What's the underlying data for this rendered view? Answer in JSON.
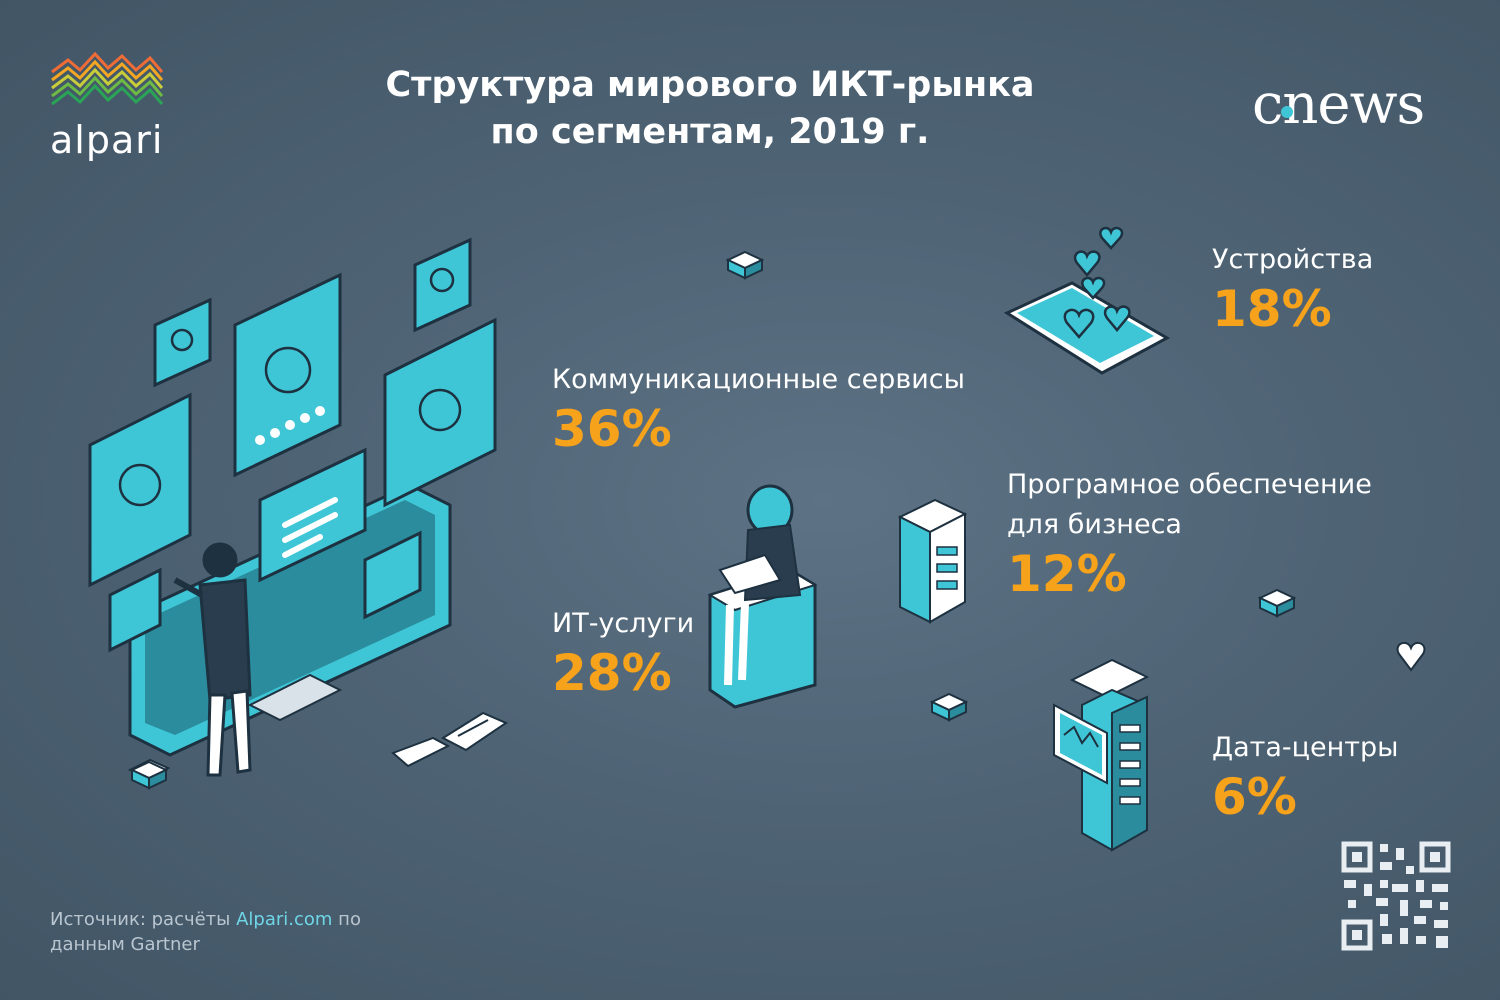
{
  "header": {
    "title_line1": "Структура мирового ИКТ-рынка",
    "title_line2": "по сегментам, 2019 г."
  },
  "brand": {
    "alpari_logo": "alpari",
    "cnews_logo": "cnews"
  },
  "chart_data": {
    "type": "table",
    "title": "Структура мирового ИКТ-рынка по сегментам, 2019 г.",
    "unit": "%",
    "segments": [
      {
        "name": "Коммуникационные сервисы",
        "value": 36,
        "value_label": "36%"
      },
      {
        "name": "ИТ-услуги",
        "value": 28,
        "value_label": "28%"
      },
      {
        "name": "Устройства",
        "value": 18,
        "value_label": "18%"
      },
      {
        "name": "Програмное обеспечение для бизнеса",
        "name_line1": "Програмное обеспечение",
        "name_line2": "для бизнеса",
        "value": 12,
        "value_label": "12%"
      },
      {
        "name": "Дата-центры",
        "value": 6,
        "value_label": "6%"
      }
    ]
  },
  "footer": {
    "source_prefix": "Источник: расчёты ",
    "source_link": "Alpari.com",
    "source_suffix": " по данным Gartner"
  },
  "colors": {
    "accent_orange": "#f7a21b",
    "accent_teal": "#3ec6d6",
    "background": "#4e6374"
  },
  "icons": [
    "alpari-logo-icon",
    "qr-code-icon",
    "monitor-profiles-icon",
    "smartphone-hearts-icon",
    "server-rack-icon",
    "datacenter-rack-icon",
    "woman-laptop-icon"
  ]
}
